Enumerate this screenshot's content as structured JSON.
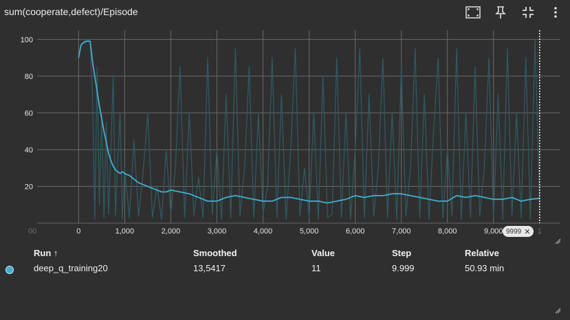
{
  "header": {
    "title": "sum(cooperate,defect)/Episode"
  },
  "toolbar": {
    "icons": [
      "fit-domain-icon",
      "pin-icon",
      "collapse-icon",
      "more-vert-icon"
    ]
  },
  "colors": {
    "background": "#2f2f2f",
    "smoothed": "#3fb0d0",
    "raw": "#2f5a61",
    "grid": "#6a6a6a"
  },
  "chart_data": {
    "type": "line",
    "title": "sum(cooperate,defect)/Episode",
    "xlabel": "",
    "ylabel": "",
    "xlim": [
      -900,
      10450
    ],
    "ylim": [
      0,
      105
    ],
    "x_ticks": [
      "00",
      "0",
      "1,000",
      "2,000",
      "3,000",
      "4,000",
      "5,000",
      "6,000",
      "7,000",
      "8,000",
      "9,000",
      "1"
    ],
    "y_ticks": [
      "100",
      "80",
      "60",
      "40",
      "20"
    ],
    "grid": true,
    "cursor_step": 9999,
    "series": [
      {
        "role": "smoothed",
        "x": [
          0,
          50,
          100,
          150,
          200,
          250,
          300,
          350,
          400,
          450,
          500,
          550,
          600,
          650,
          700,
          750,
          800,
          850,
          900,
          950,
          1000,
          1100,
          1200,
          1300,
          1400,
          1500,
          1600,
          1700,
          1800,
          1900,
          2000,
          2200,
          2400,
          2600,
          2800,
          3000,
          3200,
          3400,
          3600,
          3800,
          4000,
          4200,
          4400,
          4600,
          4800,
          5000,
          5200,
          5400,
          5600,
          5800,
          6000,
          6200,
          6400,
          6600,
          6800,
          7000,
          7200,
          7400,
          7600,
          7800,
          8000,
          8200,
          8400,
          8600,
          8800,
          9000,
          9200,
          9400,
          9600,
          9800,
          9999
        ],
        "y": [
          90,
          97,
          98,
          99,
          99,
          99,
          88,
          80,
          72,
          64,
          57,
          50,
          44,
          38,
          34,
          31,
          29,
          28,
          27,
          28,
          27,
          26,
          24,
          22,
          21,
          20,
          19,
          18,
          17,
          17,
          18,
          17,
          16,
          14,
          12,
          12,
          14,
          15,
          14,
          13,
          12,
          12,
          14,
          14,
          13,
          12,
          12,
          11,
          12,
          13,
          15,
          14,
          15,
          15,
          16,
          16,
          15,
          14,
          13,
          12,
          12,
          15,
          14,
          15,
          14,
          13,
          13,
          14,
          12,
          13,
          13.54
        ]
      },
      {
        "role": "raw",
        "x": [
          0,
          50,
          100,
          150,
          200,
          250,
          300,
          350,
          400,
          450,
          500,
          550,
          600,
          650,
          700,
          750,
          800,
          850,
          900,
          950,
          1000,
          1100,
          1200,
          1300,
          1400,
          1500,
          1600,
          1700,
          1800,
          1900,
          2000,
          2100,
          2200,
          2300,
          2400,
          2500,
          2600,
          2700,
          2800,
          2900,
          3000,
          3100,
          3200,
          3300,
          3400,
          3500,
          3600,
          3700,
          3800,
          3900,
          4000,
          4100,
          4200,
          4300,
          4400,
          4500,
          4600,
          4700,
          4800,
          4900,
          5000,
          5100,
          5200,
          5300,
          5400,
          5500,
          5600,
          5700,
          5800,
          5900,
          6000,
          6100,
          6200,
          6300,
          6400,
          6500,
          6600,
          6700,
          6800,
          6900,
          7000,
          7100,
          7200,
          7300,
          7400,
          7500,
          7600,
          7700,
          7800,
          7900,
          8000,
          8100,
          8200,
          8300,
          8400,
          8500,
          8600,
          8700,
          8800,
          8900,
          9000,
          9100,
          9200,
          9300,
          9400,
          9500,
          9600,
          9700,
          9800,
          9900,
          9999
        ],
        "y": [
          90,
          96,
          99,
          98,
          100,
          99,
          70,
          2,
          85,
          10,
          60,
          3,
          55,
          5,
          40,
          80,
          4,
          35,
          60,
          2,
          30,
          3,
          45,
          4,
          28,
          60,
          3,
          20,
          2,
          40,
          5,
          30,
          85,
          3,
          60,
          4,
          25,
          3,
          90,
          5,
          40,
          2,
          70,
          3,
          95,
          4,
          30,
          85,
          3,
          60,
          5,
          20,
          90,
          3,
          70,
          2,
          40,
          95,
          4,
          30,
          3,
          60,
          2,
          80,
          3,
          5,
          90,
          3,
          60,
          2,
          40,
          95,
          3,
          70,
          4,
          30,
          90,
          3,
          60,
          2,
          85,
          4,
          30,
          95,
          3,
          70,
          2,
          50,
          90,
          3,
          40,
          4,
          95,
          2,
          60,
          3,
          85,
          4,
          30,
          90,
          3,
          70,
          2,
          95,
          4,
          60,
          3,
          90,
          2,
          100,
          11
        ]
      }
    ]
  },
  "table": {
    "headers": {
      "run": "Run ↑",
      "smoothed": "Smoothed",
      "value": "Value",
      "step": "Step",
      "relative": "Relative"
    },
    "rows": [
      {
        "run": "deep_q_training20",
        "smoothed": "13,5417",
        "value": "11",
        "step": "9.999",
        "relative": "50.93 min",
        "color": "#3fb0d0"
      }
    ]
  },
  "step_badge": {
    "label": "9999"
  }
}
